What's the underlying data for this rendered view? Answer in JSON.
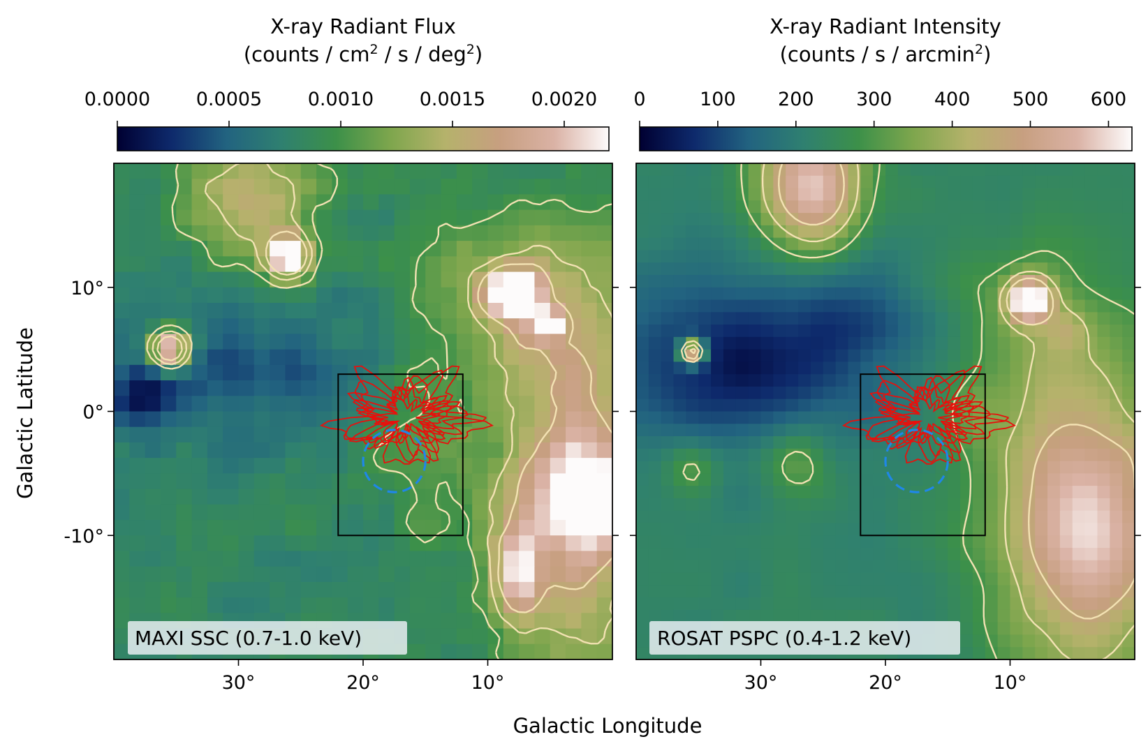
{
  "figure": {
    "xlabel": "Galactic Longitude",
    "ylabel": "Galactic Latitude"
  },
  "chart_data": [
    {
      "type": "heatmap",
      "panel": "left",
      "instrument_label": "MAXI SSC (0.7-1.0 keV)",
      "colorbar": {
        "title": "X-ray Radiant Flux",
        "unit_prefix": "(counts / cm",
        "unit_sup1": "2",
        "unit_mid": " / s / deg",
        "unit_sup2": "2",
        "unit_suffix": ")",
        "range": [
          0,
          0.0022
        ],
        "ticks": [
          0,
          0.0005,
          0.001,
          0.0015,
          0.002
        ],
        "tick_labels": [
          "0.0000",
          "0.0005",
          "0.0010",
          "0.0015",
          "0.0020"
        ]
      },
      "xlim": [
        40,
        0
      ],
      "ylim": [
        -20,
        20
      ],
      "xticks": [
        30,
        20,
        10
      ],
      "xtick_labels": [
        "30°",
        "20°",
        "10°"
      ],
      "yticks": [
        10,
        0,
        -10
      ],
      "ytick_labels": [
        "10°",
        "0°",
        "-10°"
      ],
      "region_box": {
        "l": [
          22,
          12
        ],
        "b": [
          -10,
          3
        ]
      },
      "circle": {
        "l": 17.5,
        "b": -4,
        "radius_deg": 2.5
      },
      "colormap": "gist_earth",
      "contour_levels_count": 3
    },
    {
      "type": "heatmap",
      "panel": "right",
      "instrument_label": "ROSAT PSPC (0.4-1.2 keV)",
      "colorbar": {
        "title": "X-ray Radiant Intensity",
        "unit_prefix": "(counts / s / arcmin",
        "unit_sup1": "2",
        "unit_suffix": ")",
        "range": [
          0,
          630
        ],
        "ticks": [
          0,
          100,
          200,
          300,
          400,
          500,
          600
        ],
        "tick_labels": [
          "0",
          "100",
          "200",
          "300",
          "400",
          "500",
          "600"
        ]
      },
      "xlim": [
        40,
        0
      ],
      "ylim": [
        -20,
        20
      ],
      "xticks": [
        30,
        20,
        10
      ],
      "xtick_labels": [
        "30°",
        "20°",
        "10°"
      ],
      "yticks": [
        10,
        0,
        -10
      ],
      "ytick_labels": [
        "10°",
        "0°",
        "-10°"
      ],
      "region_box": {
        "l": [
          22,
          12
        ],
        "b": [
          -10,
          3
        ]
      },
      "circle": {
        "l": 17.5,
        "b": -4,
        "radius_deg": 2.5
      },
      "colormap": "gist_earth",
      "contour_levels_count": 3
    }
  ],
  "colors": {
    "colormap_stops": [
      "#000032",
      "#0e2a6c",
      "#226380",
      "#2f8070",
      "#3c9049",
      "#7ea64d",
      "#b5b26b",
      "#c79f80",
      "#dab2a5",
      "#fdfbfb"
    ],
    "contour": "#f3e2b3",
    "cloud_outline": "#e8100c",
    "circle": "#1f87e8",
    "box": "#000000",
    "label_box": "#eef2f6"
  }
}
